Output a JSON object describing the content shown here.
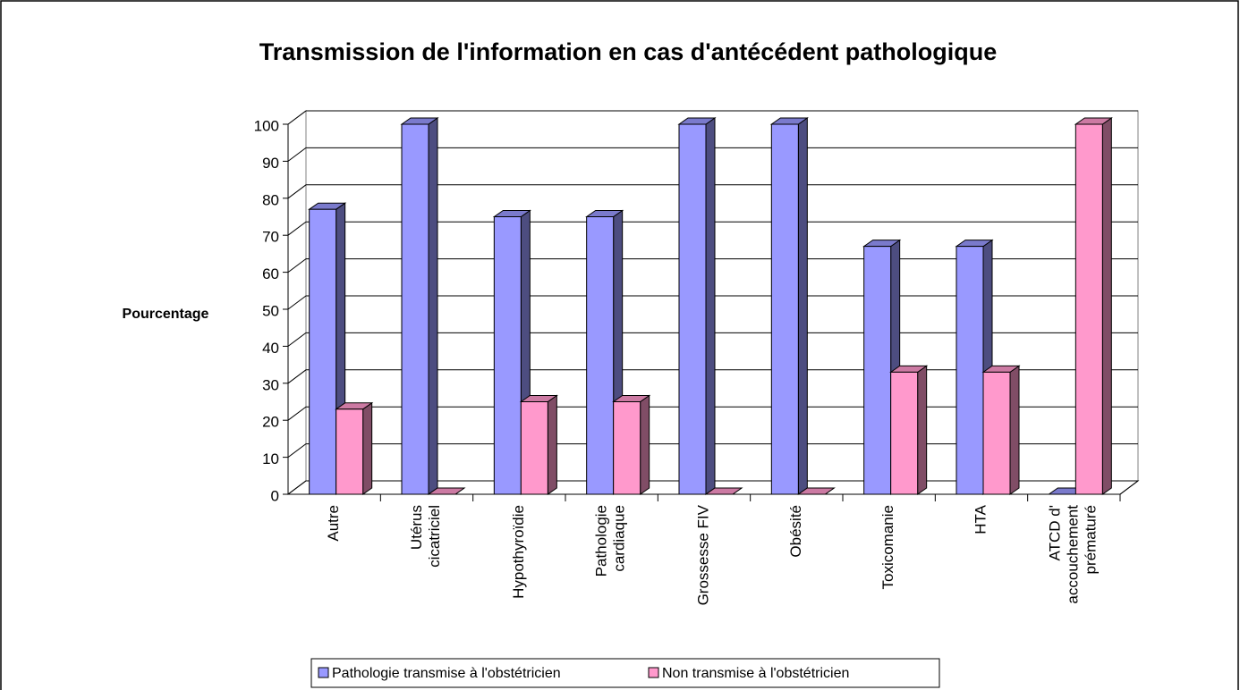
{
  "chart_data": {
    "type": "bar3d",
    "title": "Transmission de l'information en cas d'antécédent pathologique",
    "y_label": "Pourcentage",
    "categories": [
      "Autre",
      "Utérus\ncicatriciel",
      "Hypothyroïdie",
      "Pathologie\ncardiaque",
      "Grossesse FIV",
      "Obésité",
      "Toxicomanie",
      "HTA",
      "ATCD d'\naccouchement\nprématuré"
    ],
    "series": [
      {
        "name": "Pathologie transmise à l'obstétricien",
        "color": "#9999ff",
        "values": [
          77,
          100,
          75,
          75,
          100,
          100,
          67,
          67,
          0
        ]
      },
      {
        "name": "Non transmise à l'obstétricien",
        "color": "#ff99cc",
        "values": [
          23,
          0,
          25,
          25,
          0,
          0,
          33,
          33,
          100
        ]
      }
    ],
    "ylim": [
      0,
      100
    ],
    "yticks": [
      0,
      10,
      20,
      30,
      40,
      50,
      60,
      70,
      80,
      90,
      100
    ],
    "grid": true,
    "legend": "bottom"
  }
}
